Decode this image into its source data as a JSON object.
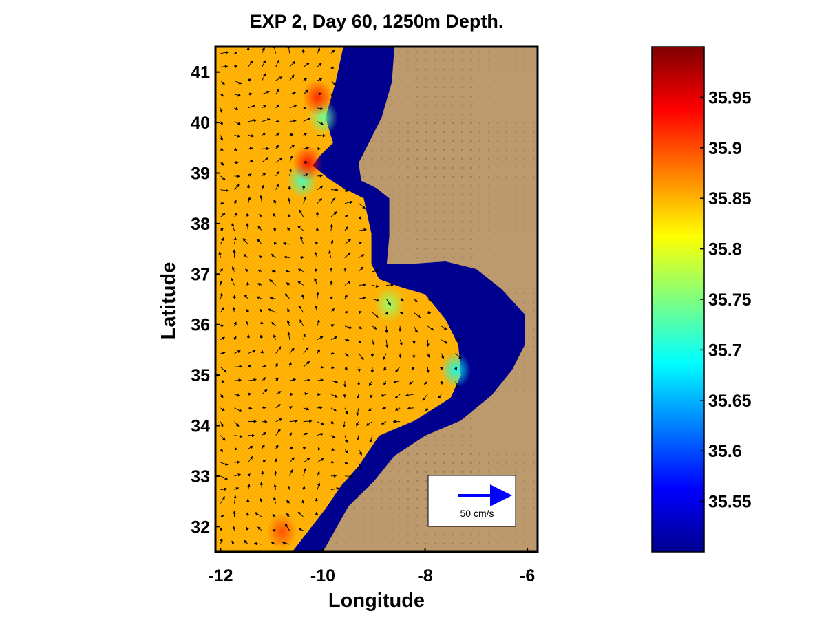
{
  "colors": {
    "land": "#bd9a6e",
    "shelf": "#00008f",
    "field": "#ffae00",
    "arrow": "#000000",
    "legend_arrow": "#0000ff"
  },
  "chart_data": {
    "type": "heatmap",
    "title": "EXP 2, Day 60, 1250m Depth.",
    "xlabel": "Longitude",
    "ylabel": "Latitude",
    "xlim": [
      -12.1,
      -5.8
    ],
    "ylim": [
      31.5,
      41.5
    ],
    "xticks": [
      -12,
      -10,
      -8,
      -6
    ],
    "yticks": [
      32,
      33,
      34,
      35,
      36,
      37,
      38,
      39,
      40,
      41
    ],
    "xtick_labels": [
      "-12",
      "-10",
      "-8",
      "-6"
    ],
    "ytick_labels": [
      "32",
      "33",
      "34",
      "35",
      "36",
      "37",
      "38",
      "39",
      "40",
      "41"
    ],
    "colorbar": {
      "range": [
        35.5,
        36.0
      ],
      "ticks": [
        35.55,
        35.6,
        35.65,
        35.7,
        35.75,
        35.8,
        35.85,
        35.9,
        35.95
      ],
      "tick_labels": [
        "35.55",
        "35.6",
        "35.65",
        "35.7",
        "35.75",
        "35.8",
        "35.85",
        "35.9",
        "35.95"
      ],
      "colormap": "jet"
    },
    "shelf_boundary": [
      [
        -9.6,
        41.5
      ],
      [
        -9.75,
        40.8
      ],
      [
        -9.95,
        40.1
      ],
      [
        -9.8,
        39.6
      ],
      [
        -10.05,
        39.35
      ],
      [
        -10.2,
        39.15
      ],
      [
        -9.9,
        38.9
      ],
      [
        -9.6,
        38.7
      ],
      [
        -9.2,
        38.5
      ],
      [
        -9.05,
        37.8
      ],
      [
        -9.05,
        37.2
      ],
      [
        -8.9,
        36.9
      ],
      [
        -8.5,
        36.75
      ],
      [
        -8.0,
        36.6
      ],
      [
        -7.6,
        36.1
      ],
      [
        -7.35,
        35.6
      ],
      [
        -7.3,
        35.0
      ],
      [
        -7.5,
        34.55
      ],
      [
        -8.2,
        34.1
      ],
      [
        -8.9,
        33.8
      ],
      [
        -9.3,
        33.2
      ],
      [
        -9.65,
        32.8
      ],
      [
        -9.95,
        32.35
      ],
      [
        -10.6,
        31.5
      ]
    ],
    "coast_boundary": [
      [
        -8.6,
        41.5
      ],
      [
        -8.65,
        40.8
      ],
      [
        -8.85,
        40.1
      ],
      [
        -9.1,
        39.6
      ],
      [
        -9.3,
        39.2
      ],
      [
        -9.25,
        38.85
      ],
      [
        -8.95,
        38.7
      ],
      [
        -8.7,
        38.5
      ],
      [
        -8.7,
        37.75
      ],
      [
        -8.75,
        37.2
      ],
      [
        -8.3,
        37.2
      ],
      [
        -7.6,
        37.25
      ],
      [
        -7.0,
        37.1
      ],
      [
        -6.5,
        36.7
      ],
      [
        -6.05,
        36.2
      ],
      [
        -6.05,
        35.6
      ],
      [
        -6.3,
        35.1
      ],
      [
        -6.7,
        34.6
      ],
      [
        -7.3,
        34.1
      ],
      [
        -8.0,
        33.8
      ],
      [
        -8.6,
        33.4
      ],
      [
        -9.0,
        32.9
      ],
      [
        -9.5,
        32.4
      ],
      [
        -10.0,
        31.5
      ]
    ],
    "salinity_anomalies": [
      {
        "lon": -10.4,
        "lat": 38.85,
        "value": 35.72
      },
      {
        "lon": -10.0,
        "lat": 40.1,
        "value": 35.74
      },
      {
        "lon": -7.4,
        "lat": 35.1,
        "value": 35.69
      },
      {
        "lon": -8.7,
        "lat": 36.4,
        "value": 35.76
      },
      {
        "lon": -10.3,
        "lat": 39.2,
        "value": 35.93
      },
      {
        "lon": -10.1,
        "lat": 40.5,
        "value": 35.92
      },
      {
        "lon": -10.8,
        "lat": 31.9,
        "value": 35.9
      }
    ],
    "velocity_scale": {
      "label": "50 cm/s",
      "speed_cm_s": 50
    }
  }
}
